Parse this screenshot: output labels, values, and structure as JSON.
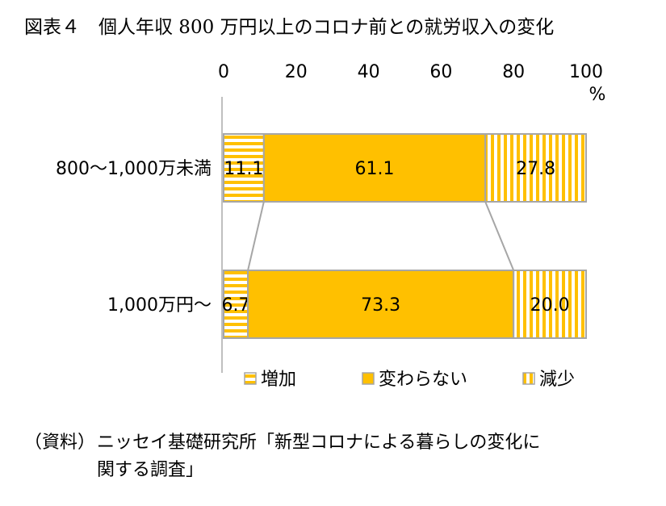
{
  "title": "図表４　個人年収 800 万円以上のコロナ前との就労収入の変化",
  "chart_data": {
    "type": "bar",
    "orientation": "horizontal",
    "stacked": true,
    "percent_stacked": true,
    "categories": [
      "800～1,000万未満",
      "1,000万円～"
    ],
    "series": [
      {
        "name": "増加",
        "values": [
          11.1,
          6.7
        ],
        "color": "#ffc000",
        "pattern": "horizontal-stripes"
      },
      {
        "name": "変わらない",
        "values": [
          61.1,
          73.3
        ],
        "color": "#ffc000",
        "pattern": "solid"
      },
      {
        "name": "減少",
        "values": [
          27.8,
          20.0
        ],
        "color": "#ffc000",
        "pattern": "vertical-stripes"
      }
    ],
    "xlim": [
      0,
      100
    ],
    "xticks": [
      "0",
      "20",
      "40",
      "60",
      "80",
      "100"
    ],
    "unit": "%",
    "legend_position": "bottom",
    "series_lines": true,
    "grid": false
  },
  "source": {
    "label": "（資料）",
    "line1": "ニッセイ基礎研究所「新型コロナによる暮らしの変化に",
    "line2": "関する調査」"
  }
}
